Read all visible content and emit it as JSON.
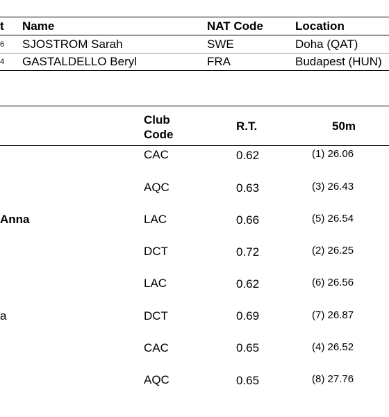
{
  "records": {
    "headers": {
      "partial": "t",
      "name": "Name",
      "nat_code": "NAT Code",
      "location": "Location"
    },
    "rows": [
      {
        "partial": "6",
        "name": "SJOSTROM Sarah",
        "nat_code": "SWE",
        "location": "Doha (QAT)"
      },
      {
        "partial": "4",
        "name": "GASTALDELLO Beryl",
        "nat_code": "FRA",
        "location": "Budapest (HUN)"
      }
    ]
  },
  "results": {
    "headers": {
      "club_code_line1": "Club",
      "club_code_line2": "Code",
      "rt": "R.T.",
      "split": "50m"
    },
    "name_fragments": {
      "row3": "Anna",
      "row6": "a"
    },
    "rows": [
      {
        "club": "CAC",
        "rt": "0.62",
        "split": "(1) 26.06"
      },
      {
        "club": "AQC",
        "rt": "0.63",
        "split": "(3) 26.43"
      },
      {
        "club": "LAC",
        "rt": "0.66",
        "split": "(5) 26.54"
      },
      {
        "club": "DCT",
        "rt": "0.72",
        "split": "(2) 26.25"
      },
      {
        "club": "LAC",
        "rt": "0.62",
        "split": "(6) 26.56"
      },
      {
        "club": "DCT",
        "rt": "0.69",
        "split": "(7) 26.87"
      },
      {
        "club": "CAC",
        "rt": "0.65",
        "split": "(4) 26.52"
      },
      {
        "club": "AQC",
        "rt": "0.65",
        "split": "(8) 27.76"
      }
    ]
  }
}
